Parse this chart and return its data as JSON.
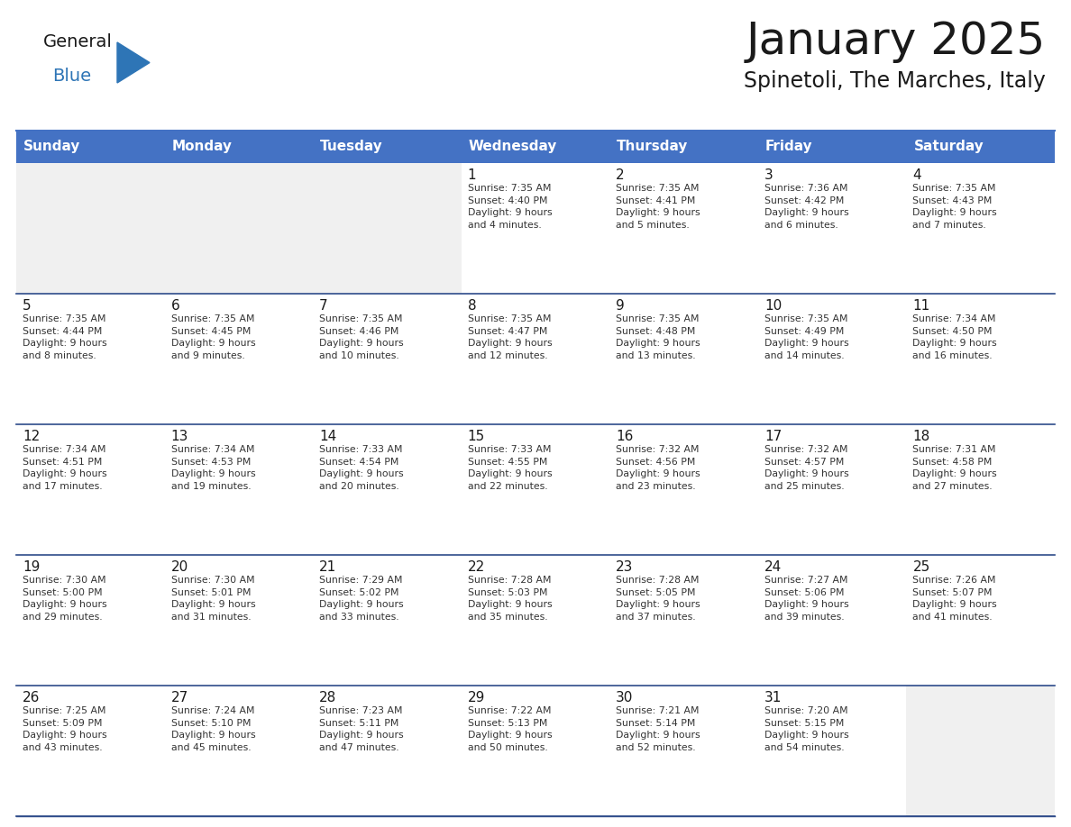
{
  "title": "January 2025",
  "subtitle": "Spinetoli, The Marches, Italy",
  "header_bg_color": "#4472C4",
  "header_text_color": "#FFFFFF",
  "cell_bg_white": "#FFFFFF",
  "cell_bg_gray": "#F0F0F0",
  "border_color": "#2E4B8A",
  "day_names": [
    "Sunday",
    "Monday",
    "Tuesday",
    "Wednesday",
    "Thursday",
    "Friday",
    "Saturday"
  ],
  "title_color": "#1a1a1a",
  "subtitle_color": "#1a1a1a",
  "cell_text_color": "#333333",
  "day_num_color": "#1a1a1a",
  "logo_general_color": "#1a1a1a",
  "logo_blue_color": "#2E75B6",
  "weeks": [
    [
      {
        "day": 0,
        "text": ""
      },
      {
        "day": 0,
        "text": ""
      },
      {
        "day": 0,
        "text": ""
      },
      {
        "day": 1,
        "text": "Sunrise: 7:35 AM\nSunset: 4:40 PM\nDaylight: 9 hours\nand 4 minutes."
      },
      {
        "day": 2,
        "text": "Sunrise: 7:35 AM\nSunset: 4:41 PM\nDaylight: 9 hours\nand 5 minutes."
      },
      {
        "day": 3,
        "text": "Sunrise: 7:36 AM\nSunset: 4:42 PM\nDaylight: 9 hours\nand 6 minutes."
      },
      {
        "day": 4,
        "text": "Sunrise: 7:35 AM\nSunset: 4:43 PM\nDaylight: 9 hours\nand 7 minutes."
      }
    ],
    [
      {
        "day": 5,
        "text": "Sunrise: 7:35 AM\nSunset: 4:44 PM\nDaylight: 9 hours\nand 8 minutes."
      },
      {
        "day": 6,
        "text": "Sunrise: 7:35 AM\nSunset: 4:45 PM\nDaylight: 9 hours\nand 9 minutes."
      },
      {
        "day": 7,
        "text": "Sunrise: 7:35 AM\nSunset: 4:46 PM\nDaylight: 9 hours\nand 10 minutes."
      },
      {
        "day": 8,
        "text": "Sunrise: 7:35 AM\nSunset: 4:47 PM\nDaylight: 9 hours\nand 12 minutes."
      },
      {
        "day": 9,
        "text": "Sunrise: 7:35 AM\nSunset: 4:48 PM\nDaylight: 9 hours\nand 13 minutes."
      },
      {
        "day": 10,
        "text": "Sunrise: 7:35 AM\nSunset: 4:49 PM\nDaylight: 9 hours\nand 14 minutes."
      },
      {
        "day": 11,
        "text": "Sunrise: 7:34 AM\nSunset: 4:50 PM\nDaylight: 9 hours\nand 16 minutes."
      }
    ],
    [
      {
        "day": 12,
        "text": "Sunrise: 7:34 AM\nSunset: 4:51 PM\nDaylight: 9 hours\nand 17 minutes."
      },
      {
        "day": 13,
        "text": "Sunrise: 7:34 AM\nSunset: 4:53 PM\nDaylight: 9 hours\nand 19 minutes."
      },
      {
        "day": 14,
        "text": "Sunrise: 7:33 AM\nSunset: 4:54 PM\nDaylight: 9 hours\nand 20 minutes."
      },
      {
        "day": 15,
        "text": "Sunrise: 7:33 AM\nSunset: 4:55 PM\nDaylight: 9 hours\nand 22 minutes."
      },
      {
        "day": 16,
        "text": "Sunrise: 7:32 AM\nSunset: 4:56 PM\nDaylight: 9 hours\nand 23 minutes."
      },
      {
        "day": 17,
        "text": "Sunrise: 7:32 AM\nSunset: 4:57 PM\nDaylight: 9 hours\nand 25 minutes."
      },
      {
        "day": 18,
        "text": "Sunrise: 7:31 AM\nSunset: 4:58 PM\nDaylight: 9 hours\nand 27 minutes."
      }
    ],
    [
      {
        "day": 19,
        "text": "Sunrise: 7:30 AM\nSunset: 5:00 PM\nDaylight: 9 hours\nand 29 minutes."
      },
      {
        "day": 20,
        "text": "Sunrise: 7:30 AM\nSunset: 5:01 PM\nDaylight: 9 hours\nand 31 minutes."
      },
      {
        "day": 21,
        "text": "Sunrise: 7:29 AM\nSunset: 5:02 PM\nDaylight: 9 hours\nand 33 minutes."
      },
      {
        "day": 22,
        "text": "Sunrise: 7:28 AM\nSunset: 5:03 PM\nDaylight: 9 hours\nand 35 minutes."
      },
      {
        "day": 23,
        "text": "Sunrise: 7:28 AM\nSunset: 5:05 PM\nDaylight: 9 hours\nand 37 minutes."
      },
      {
        "day": 24,
        "text": "Sunrise: 7:27 AM\nSunset: 5:06 PM\nDaylight: 9 hours\nand 39 minutes."
      },
      {
        "day": 25,
        "text": "Sunrise: 7:26 AM\nSunset: 5:07 PM\nDaylight: 9 hours\nand 41 minutes."
      }
    ],
    [
      {
        "day": 26,
        "text": "Sunrise: 7:25 AM\nSunset: 5:09 PM\nDaylight: 9 hours\nand 43 minutes."
      },
      {
        "day": 27,
        "text": "Sunrise: 7:24 AM\nSunset: 5:10 PM\nDaylight: 9 hours\nand 45 minutes."
      },
      {
        "day": 28,
        "text": "Sunrise: 7:23 AM\nSunset: 5:11 PM\nDaylight: 9 hours\nand 47 minutes."
      },
      {
        "day": 29,
        "text": "Sunrise: 7:22 AM\nSunset: 5:13 PM\nDaylight: 9 hours\nand 50 minutes."
      },
      {
        "day": 30,
        "text": "Sunrise: 7:21 AM\nSunset: 5:14 PM\nDaylight: 9 hours\nand 52 minutes."
      },
      {
        "day": 31,
        "text": "Sunrise: 7:20 AM\nSunset: 5:15 PM\nDaylight: 9 hours\nand 54 minutes."
      },
      {
        "day": 0,
        "text": ""
      }
    ]
  ]
}
